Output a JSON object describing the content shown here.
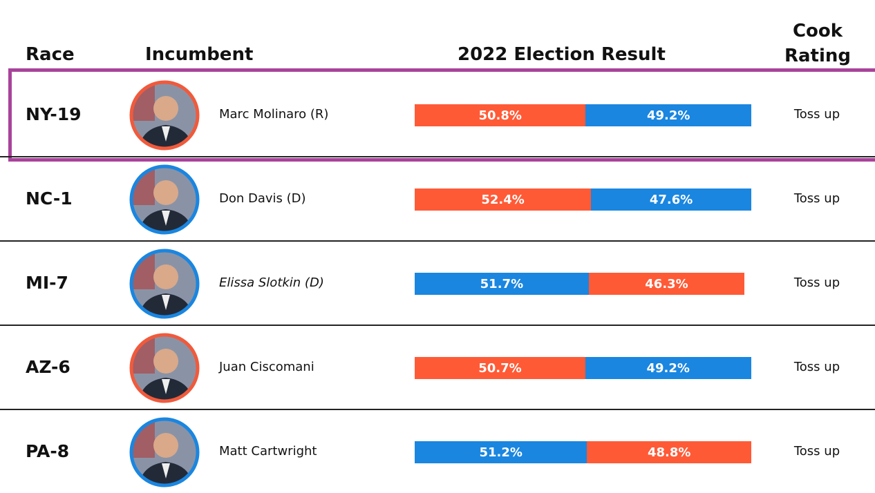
{
  "header": {
    "race": "Race",
    "incumbent": "Incumbent",
    "result": "2022 Election Result",
    "rating": "Cook Rating"
  },
  "rows": [
    {
      "race": "NY-19",
      "incumbent": "Marc Molinaro (R)",
      "italic": false,
      "ring": "#f05a3c",
      "highlight": true,
      "result": {
        "values": [
          50.8,
          49.2
        ],
        "value_labels": [
          "50.8%",
          "49.2%"
        ],
        "colors": [
          "#ff5a36",
          "#1a86e0"
        ]
      },
      "rating": "Toss up"
    },
    {
      "race": "NC-1",
      "incumbent": "Don Davis (D)",
      "italic": false,
      "ring": "#1a86e0",
      "highlight": false,
      "result": {
        "values": [
          52.4,
          47.6
        ],
        "value_labels": [
          "52.4%",
          "47.6%"
        ],
        "colors": [
          "#ff5a36",
          "#1a86e0"
        ]
      },
      "rating": "Toss up"
    },
    {
      "race": "MI-7",
      "incumbent": "Elissa Slotkin (D)",
      "italic": true,
      "ring": "#1a86e0",
      "highlight": false,
      "result": {
        "values": [
          51.7,
          46.3
        ],
        "value_labels": [
          "51.7%",
          "46.3%"
        ],
        "colors": [
          "#1a86e0",
          "#ff5a36"
        ]
      },
      "rating": "Toss up"
    },
    {
      "race": "AZ-6",
      "incumbent": "Juan Ciscomani",
      "italic": false,
      "ring": "#f05a3c",
      "highlight": false,
      "result": {
        "values": [
          50.7,
          49.2
        ],
        "value_labels": [
          "50.7%",
          "49.2%"
        ],
        "colors": [
          "#ff5a36",
          "#1a86e0"
        ]
      },
      "rating": "Toss up"
    },
    {
      "race": "PA-8",
      "incumbent": "Matt Cartwright",
      "italic": false,
      "ring": "#1a86e0",
      "highlight": false,
      "result": {
        "values": [
          51.2,
          48.8
        ],
        "value_labels": [
          "51.2%",
          "48.8%"
        ],
        "colors": [
          "#1a86e0",
          "#ff5a36"
        ]
      },
      "rating": "Toss up"
    }
  ]
}
